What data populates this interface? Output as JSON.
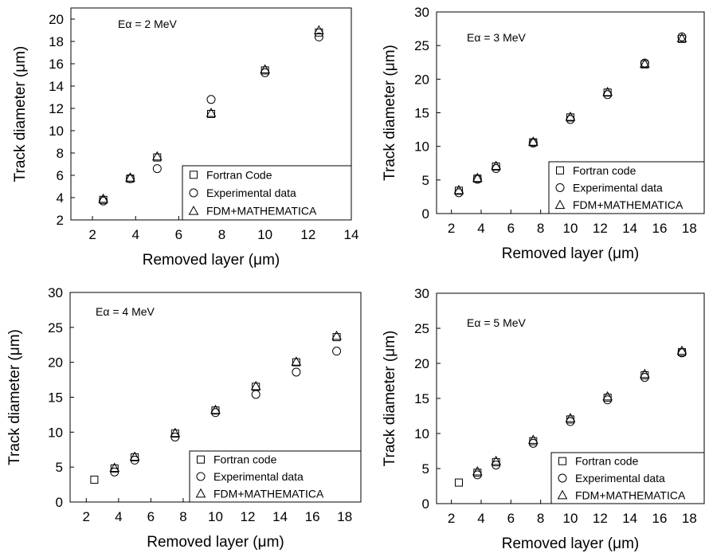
{
  "chart_data": [
    {
      "type": "scatter",
      "annotation": "Eα = 2 MeV",
      "xlabel": "Removed layer (μm)",
      "ylabel": "Track diameter (μm)",
      "xlim": [
        1,
        14
      ],
      "ylim": [
        2,
        21
      ],
      "xticks": [
        2,
        4,
        6,
        8,
        10,
        12,
        14
      ],
      "yticks": [
        2,
        4,
        6,
        8,
        10,
        12,
        14,
        16,
        18,
        20
      ],
      "legend": "bottom-right",
      "series": [
        {
          "name": "Fortran Code",
          "marker": "square",
          "x": [
            2.5,
            3.75,
            5,
            7.5,
            10,
            12.5
          ],
          "y": [
            3.8,
            5.7,
            7.6,
            11.5,
            15.4,
            18.8
          ]
        },
        {
          "name": "Experimental data",
          "marker": "circle",
          "x": [
            2.5,
            3.75,
            5,
            7.5,
            10,
            12.5
          ],
          "y": [
            3.7,
            5.7,
            6.6,
            12.8,
            15.2,
            18.4
          ]
        },
        {
          "name": "FDM+MATHEMATICA",
          "marker": "triangle",
          "x": [
            2.5,
            3.75,
            5,
            7.5,
            10,
            12.5
          ],
          "y": [
            3.9,
            5.8,
            7.7,
            11.6,
            15.5,
            19.0
          ]
        }
      ]
    },
    {
      "type": "scatter",
      "annotation": "Eα = 3 MeV",
      "xlabel": "Removed layer (μm)",
      "ylabel": "Track diameter (μm)",
      "xlim": [
        1,
        19
      ],
      "ylim": [
        0,
        30
      ],
      "xticks": [
        2,
        4,
        6,
        8,
        10,
        12,
        14,
        16,
        18
      ],
      "yticks": [
        0,
        5,
        10,
        15,
        20,
        25,
        30
      ],
      "legend": "bottom-right",
      "series": [
        {
          "name": "Fortran code",
          "marker": "square",
          "x": [
            2.5,
            3.75,
            5,
            7.5,
            10,
            12.5,
            15,
            17.5
          ],
          "y": [
            3.4,
            5.2,
            7.0,
            10.6,
            14.3,
            18.0,
            22.2,
            26.0
          ]
        },
        {
          "name": "Experimental data",
          "marker": "circle",
          "x": [
            2.5,
            3.75,
            5,
            7.5,
            10,
            12.5,
            15,
            17.5
          ],
          "y": [
            3.1,
            5.1,
            6.7,
            10.5,
            14.0,
            17.7,
            22.4,
            26.3
          ]
        },
        {
          "name": "FDM+MATHEMATICA",
          "marker": "triangle",
          "x": [
            2.5,
            3.75,
            5,
            7.5,
            10,
            12.5,
            15,
            17.5
          ],
          "y": [
            3.5,
            5.3,
            7.1,
            10.7,
            14.4,
            18.1,
            22.3,
            26.1
          ]
        }
      ]
    },
    {
      "type": "scatter",
      "annotation": "Eα = 4 MeV",
      "xlabel": "Removed layer (μm)",
      "ylabel": "Track diameter (μm)",
      "xlim": [
        1,
        19
      ],
      "ylim": [
        0,
        30
      ],
      "xticks": [
        2,
        4,
        6,
        8,
        10,
        12,
        14,
        16,
        18
      ],
      "yticks": [
        0,
        5,
        10,
        15,
        20,
        25,
        30
      ],
      "legend": "bottom-right",
      "series": [
        {
          "name": "Fortran code",
          "marker": "square",
          "x": [
            2.5,
            3.75,
            5,
            7.5,
            10,
            12.5,
            15,
            17.5
          ],
          "y": [
            3.2,
            4.8,
            6.4,
            9.8,
            13.1,
            16.5,
            20.0,
            23.6
          ]
        },
        {
          "name": "Experimental data",
          "marker": "circle",
          "x": [
            3.75,
            5,
            7.5,
            10,
            12.5,
            15,
            17.5
          ],
          "y": [
            4.3,
            6.0,
            9.3,
            12.8,
            15.4,
            18.6,
            21.6
          ]
        },
        {
          "name": "FDM+MATHEMATICA",
          "marker": "triangle",
          "x": [
            3.75,
            5,
            7.5,
            10,
            12.5,
            15,
            17.5
          ],
          "y": [
            4.9,
            6.5,
            9.9,
            13.2,
            16.6,
            20.1,
            23.8
          ]
        }
      ]
    },
    {
      "type": "scatter",
      "annotation": "Eα = 5 MeV",
      "xlabel": "Removed layer (μm)",
      "ylabel": "Track diameter (μm)",
      "xlim": [
        1,
        19
      ],
      "ylim": [
        0,
        30
      ],
      "xticks": [
        2,
        4,
        6,
        8,
        10,
        12,
        14,
        16,
        18
      ],
      "yticks": [
        0,
        5,
        10,
        15,
        20,
        25,
        30
      ],
      "legend": "bottom-right",
      "series": [
        {
          "name": "Fortran code",
          "marker": "square",
          "x": [
            2.5,
            3.75,
            5,
            7.5,
            10,
            12.5,
            15,
            17.5
          ],
          "y": [
            3.0,
            4.4,
            5.9,
            8.9,
            12.0,
            15.1,
            18.3,
            21.6
          ]
        },
        {
          "name": "Experimental data",
          "marker": "circle",
          "x": [
            3.75,
            5,
            7.5,
            10,
            12.5,
            15,
            17.5
          ],
          "y": [
            4.1,
            5.5,
            8.6,
            11.7,
            14.8,
            18.0,
            21.5
          ]
        },
        {
          "name": "FDM+MATHEMATICA",
          "marker": "triangle",
          "x": [
            3.75,
            5,
            7.5,
            10,
            12.5,
            15,
            17.5
          ],
          "y": [
            4.6,
            6.1,
            9.1,
            12.2,
            15.3,
            18.5,
            21.8
          ]
        }
      ]
    }
  ]
}
